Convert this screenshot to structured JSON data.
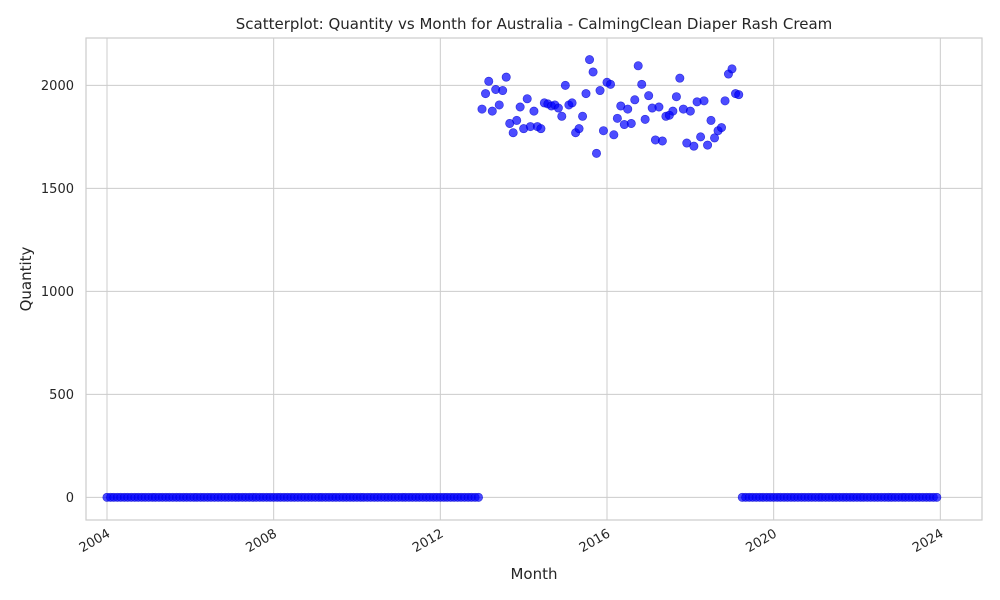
{
  "chart_data": {
    "type": "scatter",
    "title": "Scatterplot: Quantity vs Month for Australia - CalmingClean Diaper Rash Cream",
    "xlabel": "Month",
    "ylabel": "Quantity",
    "x_axis_type": "date",
    "xlim": [
      "2003-07-01",
      "2025-01-01"
    ],
    "ylim": [
      -110,
      2230
    ],
    "x_ticks": [
      {
        "date": "2004-01-01",
        "label": "2004"
      },
      {
        "date": "2008-01-01",
        "label": "2008"
      },
      {
        "date": "2012-01-01",
        "label": "2012"
      },
      {
        "date": "2016-01-01",
        "label": "2016"
      },
      {
        "date": "2020-01-01",
        "label": "2020"
      },
      {
        "date": "2024-01-01",
        "label": "2024"
      }
    ],
    "y_ticks": [
      0,
      500,
      1000,
      1500,
      2000
    ],
    "grid": true,
    "marker_color": "#0000ff",
    "marker_alpha": 0.7,
    "series": [
      {
        "name": "",
        "zero_ranges": [
          {
            "start": "2004-01",
            "end": "2012-12",
            "value": 0
          },
          {
            "start": "2019-04",
            "end": "2023-12",
            "value": 0
          }
        ],
        "points": [
          {
            "x": "2013-01",
            "y": 1885
          },
          {
            "x": "2013-02",
            "y": 1960
          },
          {
            "x": "2013-03",
            "y": 2020
          },
          {
            "x": "2013-04",
            "y": 1875
          },
          {
            "x": "2013-05",
            "y": 1980
          },
          {
            "x": "2013-06",
            "y": 1905
          },
          {
            "x": "2013-07",
            "y": 1975
          },
          {
            "x": "2013-08",
            "y": 2040
          },
          {
            "x": "2013-09",
            "y": 1815
          },
          {
            "x": "2013-10",
            "y": 1770
          },
          {
            "x": "2013-11",
            "y": 1830
          },
          {
            "x": "2013-12",
            "y": 1895
          },
          {
            "x": "2014-01",
            "y": 1790
          },
          {
            "x": "2014-02",
            "y": 1935
          },
          {
            "x": "2014-03",
            "y": 1800
          },
          {
            "x": "2014-04",
            "y": 1875
          },
          {
            "x": "2014-05",
            "y": 1800
          },
          {
            "x": "2014-06",
            "y": 1790
          },
          {
            "x": "2014-07",
            "y": 1915
          },
          {
            "x": "2014-08",
            "y": 1910
          },
          {
            "x": "2014-09",
            "y": 1900
          },
          {
            "x": "2014-10",
            "y": 1905
          },
          {
            "x": "2014-11",
            "y": 1890
          },
          {
            "x": "2014-12",
            "y": 1850
          },
          {
            "x": "2015-01",
            "y": 2000
          },
          {
            "x": "2015-02",
            "y": 1905
          },
          {
            "x": "2015-03",
            "y": 1915
          },
          {
            "x": "2015-04",
            "y": 1770
          },
          {
            "x": "2015-05",
            "y": 1790
          },
          {
            "x": "2015-06",
            "y": 1850
          },
          {
            "x": "2015-07",
            "y": 1960
          },
          {
            "x": "2015-08",
            "y": 2125
          },
          {
            "x": "2015-09",
            "y": 2065
          },
          {
            "x": "2015-10",
            "y": 1670
          },
          {
            "x": "2015-11",
            "y": 1975
          },
          {
            "x": "2015-12",
            "y": 1780
          },
          {
            "x": "2016-01",
            "y": 2015
          },
          {
            "x": "2016-02",
            "y": 2005
          },
          {
            "x": "2016-03",
            "y": 1760
          },
          {
            "x": "2016-04",
            "y": 1840
          },
          {
            "x": "2016-05",
            "y": 1900
          },
          {
            "x": "2016-06",
            "y": 1810
          },
          {
            "x": "2016-07",
            "y": 1885
          },
          {
            "x": "2016-08",
            "y": 1815
          },
          {
            "x": "2016-09",
            "y": 1930
          },
          {
            "x": "2016-10",
            "y": 2095
          },
          {
            "x": "2016-11",
            "y": 2005
          },
          {
            "x": "2016-12",
            "y": 1835
          },
          {
            "x": "2017-01",
            "y": 1950
          },
          {
            "x": "2017-02",
            "y": 1890
          },
          {
            "x": "2017-03",
            "y": 1735
          },
          {
            "x": "2017-04",
            "y": 1895
          },
          {
            "x": "2017-05",
            "y": 1730
          },
          {
            "x": "2017-06",
            "y": 1850
          },
          {
            "x": "2017-07",
            "y": 1855
          },
          {
            "x": "2017-08",
            "y": 1875
          },
          {
            "x": "2017-09",
            "y": 1945
          },
          {
            "x": "2017-10",
            "y": 2035
          },
          {
            "x": "2017-11",
            "y": 1885
          },
          {
            "x": "2017-12",
            "y": 1720
          },
          {
            "x": "2018-01",
            "y": 1875
          },
          {
            "x": "2018-02",
            "y": 1705
          },
          {
            "x": "2018-03",
            "y": 1920
          },
          {
            "x": "2018-04",
            "y": 1750
          },
          {
            "x": "2018-05",
            "y": 1925
          },
          {
            "x": "2018-06",
            "y": 1710
          },
          {
            "x": "2018-07",
            "y": 1830
          },
          {
            "x": "2018-08",
            "y": 1745
          },
          {
            "x": "2018-09",
            "y": 1780
          },
          {
            "x": "2018-10",
            "y": 1795
          },
          {
            "x": "2018-11",
            "y": 1925
          },
          {
            "x": "2018-12",
            "y": 2055
          },
          {
            "x": "2019-01",
            "y": 2080
          },
          {
            "x": "2019-02",
            "y": 1960
          },
          {
            "x": "2019-03",
            "y": 1955
          }
        ]
      }
    ]
  }
}
